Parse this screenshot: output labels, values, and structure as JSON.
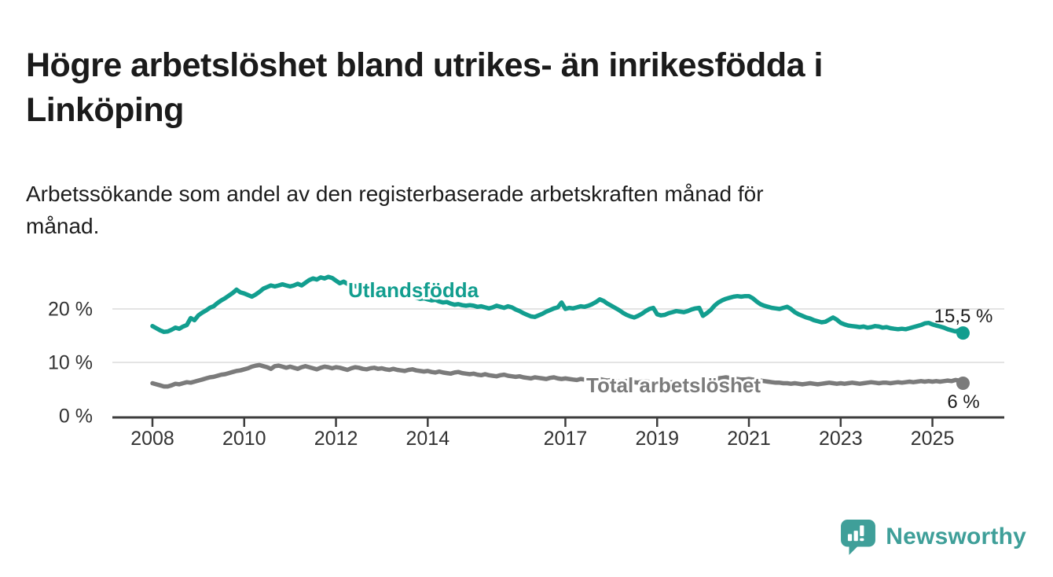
{
  "header": {
    "title": "Högre arbetslöshet bland utrikes- än inrikesfödda i Linköping",
    "title_lines": [
      "Högre arbetslöshet bland utrikes- än inrikesfödda i",
      "Linköping"
    ],
    "subtitle": "Arbetssökande som andel av den registerbaserade arbetskraften månad för månad.",
    "subtitle_lines": [
      "Arbetssökande som andel av den registerbaserade arbetskraften månad för",
      "månad."
    ]
  },
  "colors": {
    "accent_teal": "#129e8f",
    "series_gray": "#7b7b7b",
    "text": "#1b1b1b",
    "tick_text": "#333333",
    "grid": "#dcdcdc",
    "axis": "#3d3d3d",
    "logo_teal": "#3f9f99",
    "background": "#ffffff"
  },
  "chart_data": {
    "type": "line",
    "unit": "%",
    "frequency": "monthly",
    "x_start": "2008-01",
    "x_end": "2025-09",
    "grid": "horizontal",
    "legend_position": "inline-labels",
    "ylim": [
      0,
      27
    ],
    "y_ticks": [
      {
        "value": 0,
        "label": "0 %"
      },
      {
        "value": 10,
        "label": "10 %"
      },
      {
        "value": 20,
        "label": "20 %"
      }
    ],
    "x_ticks": [
      {
        "year": 2008,
        "label": "2008"
      },
      {
        "year": 2010,
        "label": "2010"
      },
      {
        "year": 2012,
        "label": "2012"
      },
      {
        "year": 2014,
        "label": "2014"
      },
      {
        "year": 2017,
        "label": "2017"
      },
      {
        "year": 2019,
        "label": "2019"
      },
      {
        "year": 2021,
        "label": "2021"
      },
      {
        "year": 2023,
        "label": "2023"
      },
      {
        "year": 2025,
        "label": "2025"
      }
    ],
    "series": [
      {
        "name": "Utlandsfödda",
        "color": "#129e8f",
        "end_label": "15,5 %",
        "last_value": 15.5,
        "values": [
          16.8,
          16.4,
          16.0,
          15.7,
          15.8,
          16.1,
          16.5,
          16.3,
          16.7,
          17.0,
          18.3,
          17.9,
          18.8,
          19.3,
          19.7,
          20.2,
          20.5,
          21.1,
          21.6,
          22.0,
          22.5,
          23.0,
          23.6,
          23.1,
          22.9,
          22.6,
          22.3,
          22.7,
          23.2,
          23.8,
          24.1,
          24.4,
          24.2,
          24.4,
          24.6,
          24.4,
          24.2,
          24.4,
          24.7,
          24.4,
          24.9,
          25.4,
          25.7,
          25.5,
          25.9,
          25.7,
          26.0,
          25.8,
          25.3,
          24.8,
          25.1,
          24.7,
          24.4,
          24.3,
          24.0,
          23.8,
          23.9,
          23.6,
          23.4,
          23.5,
          23.3,
          23.1,
          23.2,
          22.9,
          22.7,
          22.8,
          22.5,
          22.3,
          22.4,
          22.1,
          21.9,
          22.0,
          21.8,
          21.6,
          21.7,
          21.4,
          21.2,
          21.3,
          21.0,
          20.8,
          20.9,
          20.7,
          20.6,
          20.7,
          20.6,
          20.4,
          20.5,
          20.3,
          20.1,
          20.3,
          20.6,
          20.4,
          20.2,
          20.5,
          20.3,
          19.9,
          19.6,
          19.2,
          18.9,
          18.6,
          18.5,
          18.8,
          19.1,
          19.5,
          19.8,
          20.1,
          20.3,
          21.2,
          20.0,
          20.2,
          20.1,
          20.3,
          20.5,
          20.4,
          20.6,
          20.9,
          21.3,
          21.8,
          21.5,
          21.0,
          20.6,
          20.2,
          19.8,
          19.3,
          18.9,
          18.6,
          18.4,
          18.7,
          19.1,
          19.6,
          20.0,
          20.2,
          19.0,
          18.8,
          18.9,
          19.2,
          19.4,
          19.6,
          19.5,
          19.4,
          19.6,
          19.9,
          20.1,
          20.2,
          18.7,
          19.2,
          19.8,
          20.6,
          21.2,
          21.6,
          21.9,
          22.1,
          22.3,
          22.4,
          22.3,
          22.4,
          22.4,
          22.0,
          21.4,
          20.9,
          20.6,
          20.4,
          20.2,
          20.1,
          20.0,
          20.2,
          20.4,
          20.0,
          19.4,
          19.0,
          18.7,
          18.4,
          18.2,
          17.9,
          17.7,
          17.5,
          17.6,
          18.0,
          18.4,
          18.0,
          17.4,
          17.1,
          16.9,
          16.8,
          16.7,
          16.6,
          16.7,
          16.5,
          16.6,
          16.8,
          16.7,
          16.5,
          16.6,
          16.4,
          16.3,
          16.2,
          16.3,
          16.2,
          16.4,
          16.6,
          16.8,
          17.0,
          17.3,
          17.4,
          17.1,
          16.9,
          16.7,
          16.5,
          16.2,
          16.0,
          15.8,
          16.0,
          15.5
        ]
      },
      {
        "name": "Total arbetslöshet",
        "color": "#7b7b7b",
        "end_label": "6 %",
        "last_value": 6.1,
        "values": [
          6.1,
          5.9,
          5.7,
          5.5,
          5.5,
          5.7,
          6.0,
          5.9,
          6.1,
          6.3,
          6.2,
          6.4,
          6.6,
          6.8,
          7.0,
          7.2,
          7.3,
          7.5,
          7.7,
          7.8,
          8.0,
          8.2,
          8.4,
          8.5,
          8.7,
          8.9,
          9.2,
          9.4,
          9.5,
          9.3,
          9.1,
          8.8,
          9.3,
          9.4,
          9.2,
          9.0,
          9.2,
          9.0,
          8.8,
          9.1,
          9.3,
          9.1,
          8.9,
          8.7,
          9.0,
          9.2,
          9.1,
          8.9,
          9.1,
          9.0,
          8.8,
          8.6,
          8.9,
          9.1,
          9.0,
          8.8,
          8.7,
          8.9,
          9.0,
          8.8,
          8.9,
          8.7,
          8.6,
          8.8,
          8.6,
          8.5,
          8.4,
          8.6,
          8.7,
          8.5,
          8.4,
          8.3,
          8.4,
          8.2,
          8.1,
          8.3,
          8.1,
          8.0,
          7.9,
          8.1,
          8.2,
          8.0,
          7.9,
          7.8,
          7.9,
          7.7,
          7.6,
          7.8,
          7.6,
          7.5,
          7.4,
          7.6,
          7.7,
          7.5,
          7.4,
          7.3,
          7.4,
          7.2,
          7.1,
          7.0,
          7.2,
          7.1,
          7.0,
          6.9,
          7.1,
          7.2,
          7.0,
          6.9,
          7.0,
          6.9,
          6.8,
          6.7,
          6.9,
          6.8,
          6.7,
          6.6,
          6.8,
          6.9,
          6.7,
          6.6,
          6.7,
          6.5,
          6.4,
          6.3,
          6.5,
          6.4,
          6.3,
          6.2,
          6.4,
          6.5,
          6.3,
          6.2,
          6.3,
          6.2,
          6.1,
          6.2,
          6.3,
          6.2,
          6.1,
          6.0,
          6.2,
          6.3,
          6.2,
          6.1,
          6.2,
          6.3,
          6.5,
          6.8,
          7.0,
          7.1,
          7.2,
          7.1,
          7.0,
          6.9,
          6.8,
          6.8,
          6.9,
          6.8,
          6.7,
          6.6,
          6.5,
          6.4,
          6.3,
          6.2,
          6.2,
          6.1,
          6.1,
          6.0,
          6.1,
          6.0,
          5.9,
          6.0,
          6.1,
          6.0,
          5.9,
          6.0,
          6.1,
          6.2,
          6.1,
          6.0,
          6.1,
          6.0,
          6.1,
          6.2,
          6.1,
          6.0,
          6.1,
          6.2,
          6.3,
          6.2,
          6.1,
          6.2,
          6.2,
          6.1,
          6.2,
          6.3,
          6.2,
          6.3,
          6.4,
          6.3,
          6.4,
          6.5,
          6.4,
          6.5,
          6.4,
          6.5,
          6.4,
          6.5,
          6.6,
          6.5,
          6.7,
          6.6,
          6.1
        ]
      }
    ]
  },
  "footer": {
    "brand": "Newsworthy"
  }
}
